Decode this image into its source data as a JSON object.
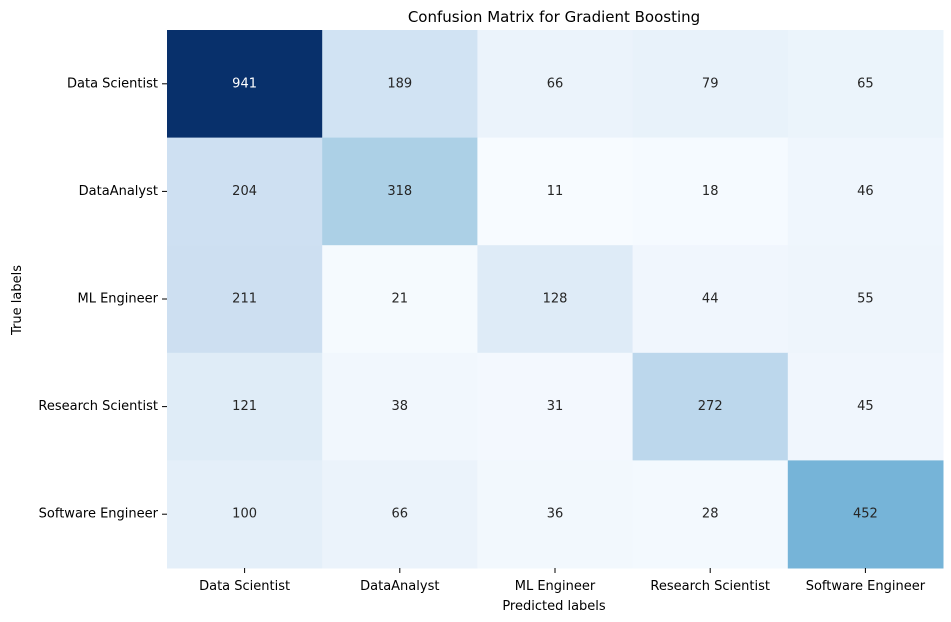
{
  "chart_data": {
    "type": "heatmap",
    "title": "Confusion Matrix for Gradient Boosting",
    "xlabel": "Predicted labels",
    "ylabel": "True labels",
    "x_categories": [
      "Data Scientist",
      "DataAnalyst",
      "ML Engineer",
      "Research Scientist",
      "Software Engineer"
    ],
    "y_categories": [
      "Data Scientist",
      "DataAnalyst",
      "ML Engineer",
      "Research Scientist",
      "Software Engineer"
    ],
    "values": [
      [
        941,
        189,
        66,
        79,
        65
      ],
      [
        204,
        318,
        11,
        18,
        46
      ],
      [
        211,
        21,
        128,
        44,
        55
      ],
      [
        121,
        38,
        31,
        272,
        45
      ],
      [
        100,
        66,
        36,
        28,
        452
      ]
    ],
    "colormap": "Blues",
    "vmin": 11,
    "vmax": 941,
    "colorbar": false
  }
}
